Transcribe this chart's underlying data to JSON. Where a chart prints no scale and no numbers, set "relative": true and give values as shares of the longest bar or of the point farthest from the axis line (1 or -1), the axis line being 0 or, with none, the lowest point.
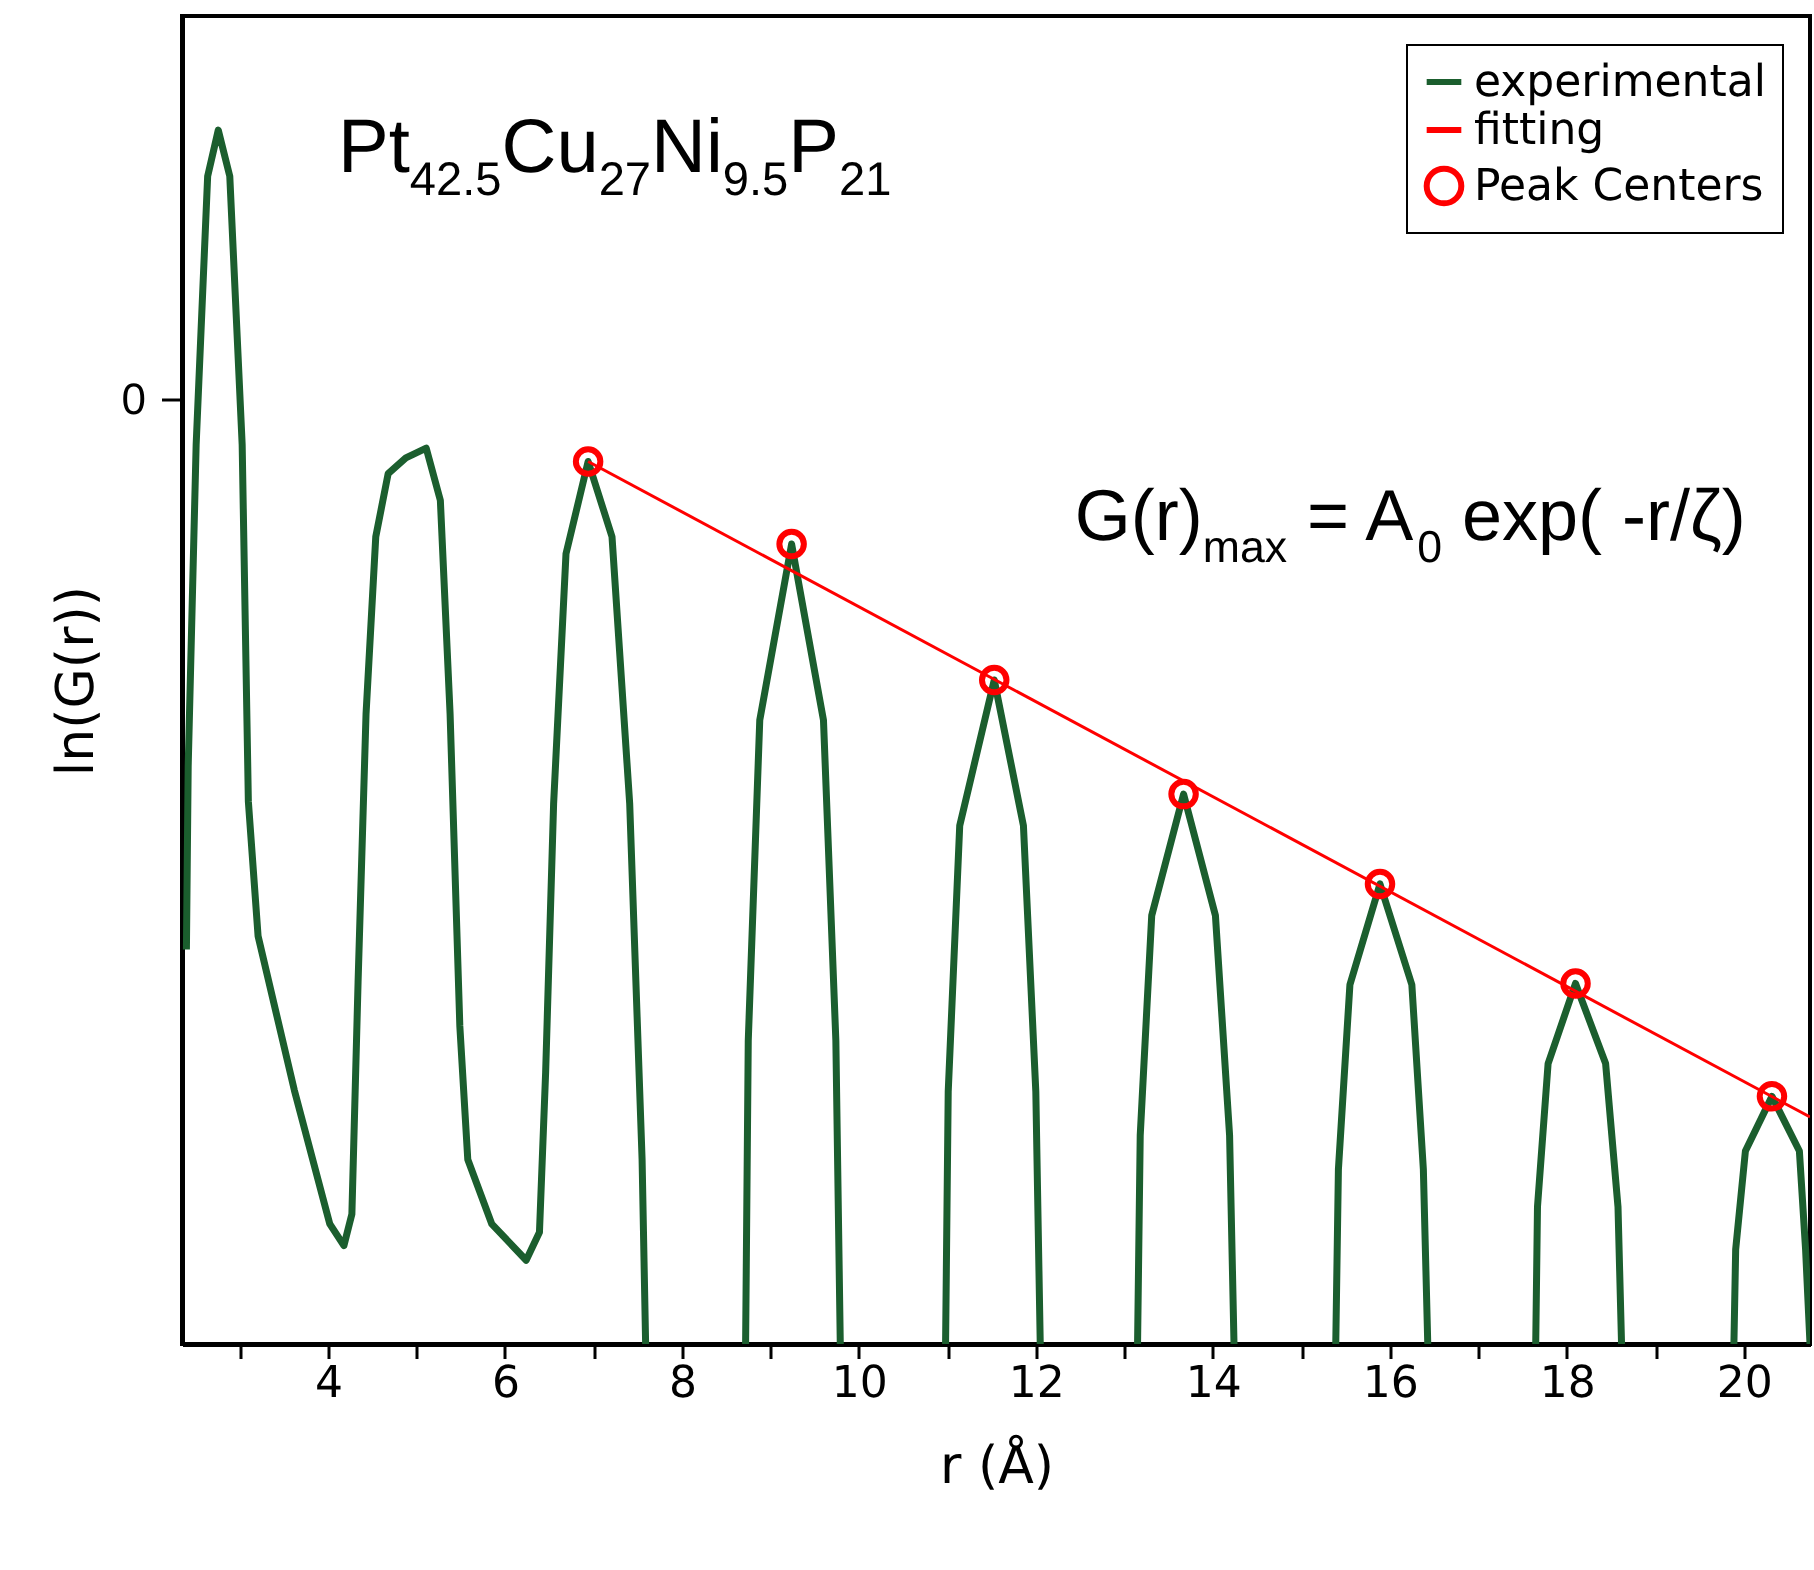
{
  "chart_data": {
    "type": "line",
    "relative": true,
    "title": "Pt$_{42.5}$Cu$_{27}$Ni$_{9.5}$P$_{21}$",
    "xlabel": "r (Å)",
    "ylabel": "ln(G(r))",
    "xlim": [
      2.35,
      20.75
    ],
    "xticks": [
      {
        "value": 3,
        "label": null
      },
      4,
      {
        "value": 5,
        "label": null
      },
      6,
      {
        "value": 7,
        "label": null
      },
      8,
      {
        "value": 9,
        "label": null
      },
      10,
      {
        "value": 11,
        "label": null
      },
      12,
      {
        "value": 13,
        "label": null
      },
      14,
      {
        "value": 15,
        "label": null
      },
      16,
      {
        "value": 17,
        "label": null
      },
      18,
      {
        "value": 19,
        "label": null
      },
      20
    ],
    "annotations": [
      "0",
      "G(r)$_{max}$ = A$_{0}$ exp( -r/ζ)"
    ],
    "legend": "top right",
    "grid": false,
    "series": [
      {
        "name": "experimental",
        "color": "#1b5e2e",
        "x": [
          2.4,
          2.42,
          2.51,
          2.64,
          2.76,
          2.89,
          3.03,
          3.1,
          3.21,
          3.62,
          4.02,
          4.18,
          4.27,
          4.34,
          4.43,
          4.54,
          4.68,
          4.88,
          5.11,
          5.27,
          5.38,
          5.49,
          5.58,
          5.85,
          6.24,
          6.39,
          6.46,
          6.55,
          6.69,
          6.94,
          7.21,
          7.41,
          7.55,
          7.59,
          8.15,
          8.72,
          8.75,
          8.88,
          9.24,
          9.6,
          9.74,
          9.79,
          10.4,
          10.98,
          11.01,
          11.14,
          11.53,
          11.86,
          12.0,
          12.05,
          12.6,
          13.15,
          13.18,
          13.31,
          13.67,
          14.03,
          14.19,
          14.24,
          14.8,
          15.39,
          15.42,
          15.55,
          15.89,
          16.25,
          16.38,
          16.43,
          17.0,
          17.65,
          17.67,
          17.79,
          18.1,
          18.44,
          18.58,
          18.62,
          19.2,
          19.89,
          19.91,
          20.02,
          20.32,
          20.63,
          20.7,
          20.75
        ],
        "values": [
          0.325,
          0.476,
          0.741,
          0.962,
          1.0,
          0.962,
          0.741,
          0.447,
          0.336,
          0.209,
          0.099,
          0.081,
          0.107,
          0.298,
          0.519,
          0.665,
          0.717,
          0.73,
          0.738,
          0.695,
          0.519,
          0.262,
          0.152,
          0.099,
          0.069,
          0.092,
          0.224,
          0.445,
          0.651,
          0.727,
          0.665,
          0.445,
          0.152,
          0,
          null,
          0,
          0.25,
          0.514,
          0.659,
          0.514,
          0.25,
          0,
          null,
          0,
          0.208,
          0.427,
          0.547,
          0.427,
          0.208,
          0,
          null,
          0,
          0.172,
          0.353,
          0.453,
          0.353,
          0.172,
          0,
          null,
          0,
          0.144,
          0.296,
          0.379,
          0.296,
          0.144,
          0,
          null,
          0,
          0.113,
          0.231,
          0.297,
          0.231,
          0.113,
          0,
          null,
          0,
          0.078,
          0.159,
          0.204,
          0.159,
          0.078,
          0
        ]
      },
      {
        "name": "fitting",
        "color": "#ff0000",
        "x": [
          6.94,
          20.75
        ],
        "values": [
          0.727,
          0.187
        ]
      },
      {
        "name": "Peak Centers",
        "color": "#ff0000",
        "type": "scatter",
        "marker": "circle",
        "x": [
          6.94,
          9.24,
          11.53,
          13.67,
          15.89,
          18.1,
          20.32
        ],
        "values": [
          0.727,
          0.659,
          0.547,
          0.453,
          0.379,
          0.297,
          0.204
        ]
      }
    ]
  }
}
